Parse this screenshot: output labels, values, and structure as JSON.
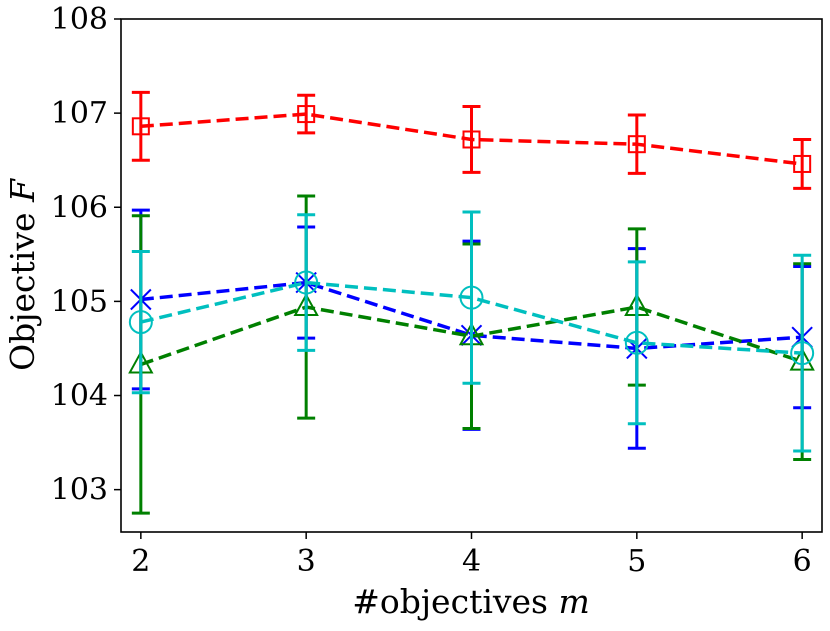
{
  "chart_data": {
    "type": "line",
    "title": "",
    "xlabel": "#objectives",
    "xlabel_var": "m",
    "ylabel": "Objective",
    "ylabel_var": "F",
    "x": [
      2,
      3,
      4,
      5,
      6
    ],
    "xlim": [
      1.88,
      6.12
    ],
    "ylim": [
      102.55,
      108.0
    ],
    "xticks": [
      2,
      3,
      4,
      5,
      6
    ],
    "yticks": [
      103,
      104,
      105,
      106,
      107,
      108
    ],
    "grid": false,
    "legend": "none",
    "series": [
      {
        "name": "red-square",
        "color": "#ff0000",
        "marker": "square",
        "values": [
          106.86,
          106.99,
          106.72,
          106.67,
          106.46
        ],
        "err": [
          0.36,
          0.2,
          0.35,
          0.31,
          0.26
        ]
      },
      {
        "name": "blue-x",
        "color": "#0000ff",
        "marker": "x",
        "values": [
          105.02,
          105.2,
          104.64,
          104.5,
          104.62
        ],
        "err": [
          0.95,
          0.59,
          1.0,
          1.06,
          0.75
        ]
      },
      {
        "name": "green-triangle",
        "color": "#008000",
        "marker": "triangle",
        "values": [
          104.33,
          104.94,
          104.63,
          104.94,
          104.36
        ],
        "err": [
          1.58,
          1.18,
          0.98,
          0.83,
          1.04
        ]
      },
      {
        "name": "cyan-circle",
        "color": "#00bfbf",
        "marker": "circle",
        "values": [
          104.78,
          105.2,
          105.04,
          104.56,
          104.45
        ],
        "err": [
          0.75,
          0.72,
          0.91,
          0.86,
          1.04
        ]
      }
    ]
  }
}
